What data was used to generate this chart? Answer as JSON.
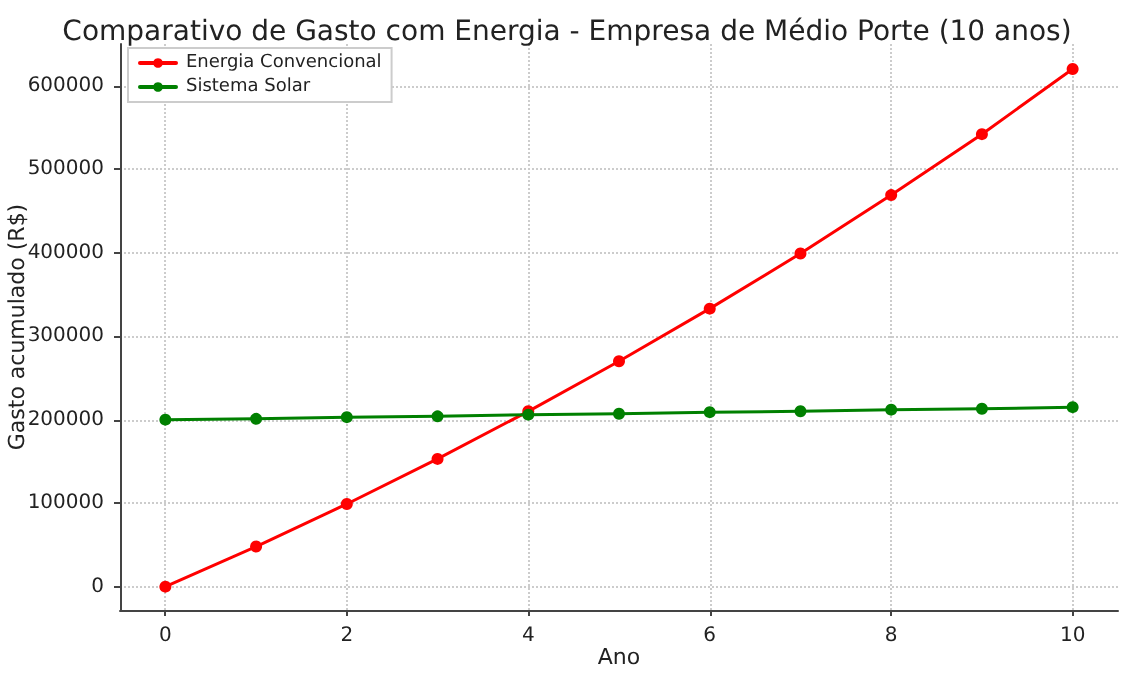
{
  "chart_data": {
    "type": "line",
    "title": "Comparativo de Gasto com Energia - Empresa de Médio Porte (10 anos)",
    "xlabel": "Ano",
    "ylabel": "Gasto acumulado (R$)",
    "x": [
      0,
      1,
      2,
      3,
      4,
      5,
      6,
      7,
      8,
      9,
      10
    ],
    "series": [
      {
        "name": "Energia Convencional",
        "color": "#ff0000",
        "values": [
          0,
          48000,
          99000,
          153000,
          210000,
          270000,
          333000,
          399000,
          469000,
          542000,
          620000
        ]
      },
      {
        "name": "Sistema Solar",
        "color": "#008000",
        "values": [
          200000,
          201000,
          203000,
          204000,
          206000,
          207000,
          209000,
          210000,
          212000,
          213000,
          215000
        ]
      }
    ],
    "xlim": [
      -0.5,
      10.5
    ],
    "xticks": [
      0,
      2,
      4,
      6,
      8,
      10
    ],
    "ylim": [
      -28000,
      650000
    ],
    "yticks": [
      0,
      100000,
      200000,
      300000,
      400000,
      500000,
      600000
    ],
    "grid": true,
    "legend": "top left",
    "marker": "circle",
    "line_style": "solid"
  }
}
